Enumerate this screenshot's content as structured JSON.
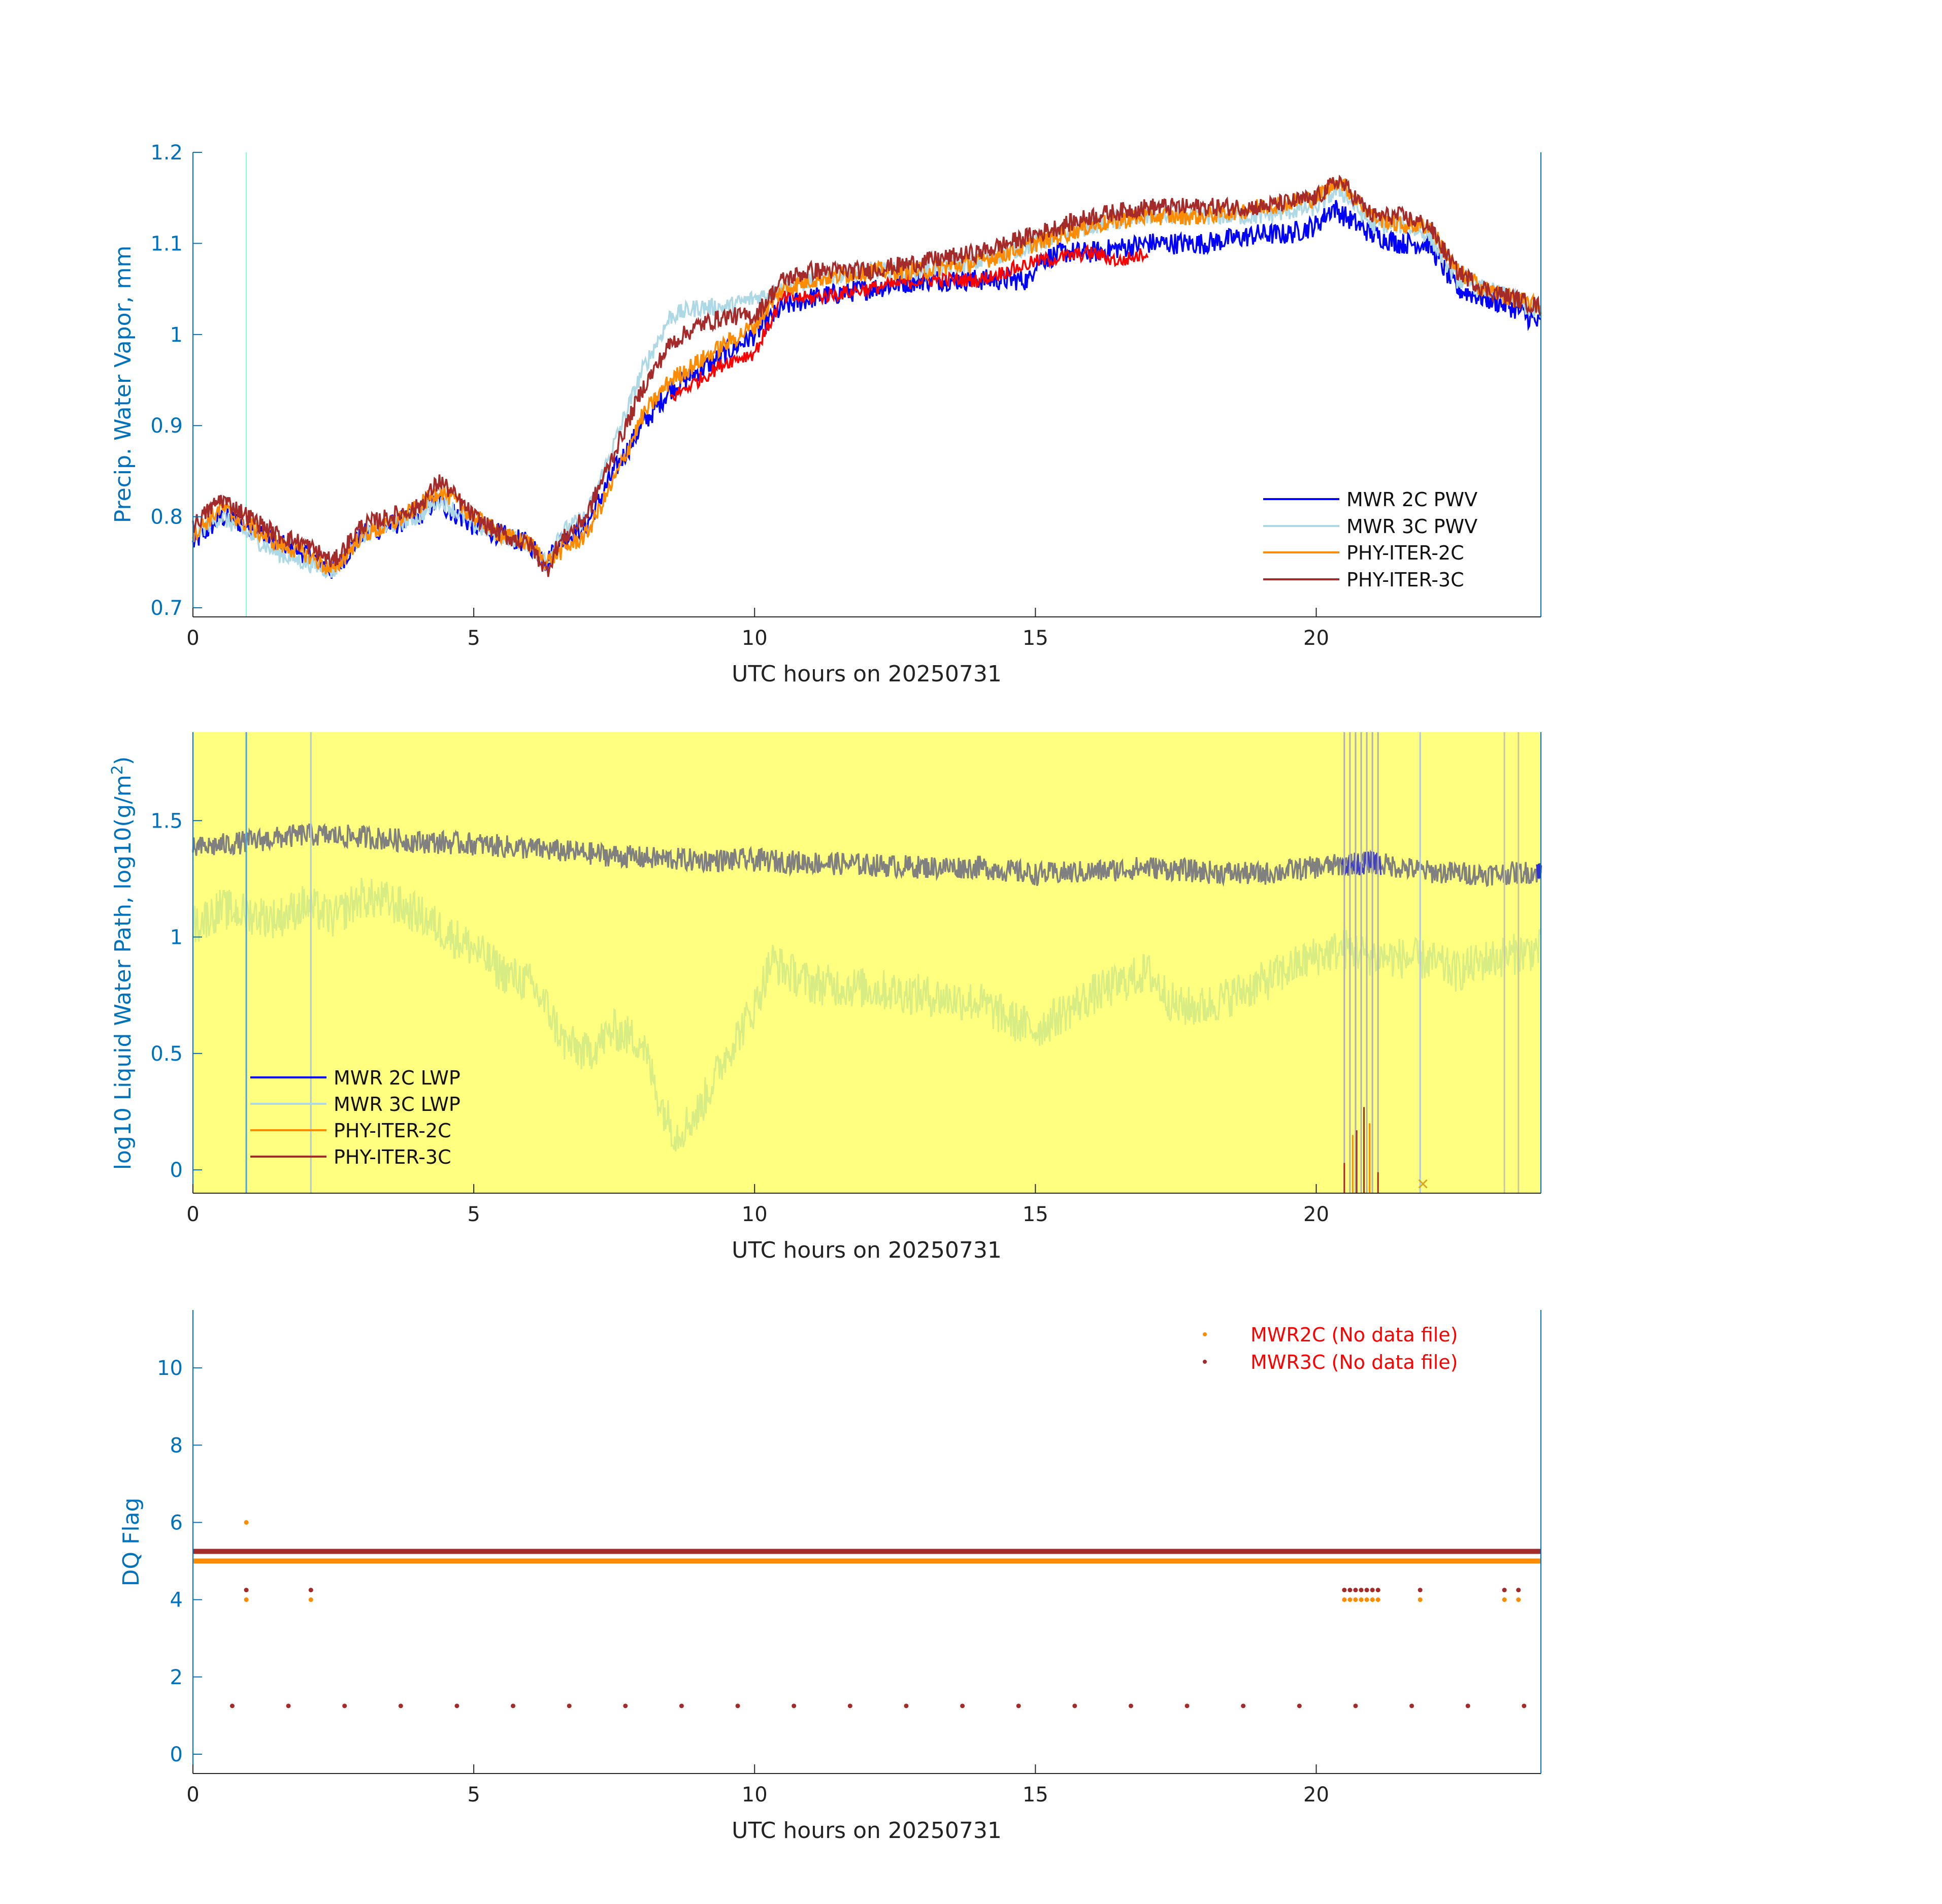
{
  "page": {
    "date": "20250731"
  },
  "colors": {
    "axis_blue": "#0072BD",
    "mwr2c": "#0000FF",
    "mwr3c": "#ADD8E6",
    "phy2c": "#FF8C00",
    "phy3c": "#A52A2A",
    "red_seg": "#FF0000",
    "lwp_bg": "#FFFF80",
    "lwp_gray": "#808080",
    "lwp_green": "#D8EC84",
    "dq_orange": "#FF8C00",
    "dq_red": "#A52A2A",
    "legend_red_text": "#FF0000"
  },
  "chart_data": [
    {
      "type": "line",
      "name": "pwv",
      "title": "",
      "xlabel": "UTC hours on 20250731",
      "ylabel": "Precip. Water Vapor, mm",
      "xlim": [
        0,
        24
      ],
      "ylim": [
        0.69,
        1.2
      ],
      "xticks": [
        0,
        5,
        10,
        15,
        20
      ],
      "yticks": [
        0.7,
        0.8,
        0.9,
        1,
        1.1,
        1.2
      ],
      "ytick_labels": [
        "0.7",
        "0.8",
        "0.9",
        "1",
        "1.1",
        "1.2"
      ],
      "vlines": [
        {
          "x": 0.95,
          "color": "#7FFFD4"
        }
      ],
      "legend": [
        "MWR 2C PWV",
        "MWR 3C PWV",
        "PHY-ITER-2C",
        "PHY-ITER-3C"
      ],
      "legend_position": "bottom-right",
      "series": [
        {
          "name": "MWR 2C PWV",
          "color": "#0000FF",
          "noise": 0.012,
          "x": [
            0,
            0.5,
            1,
            1.5,
            2,
            2.5,
            3,
            3.5,
            4,
            4.4,
            4.5,
            5,
            5.5,
            6,
            6.3,
            6.5,
            7,
            7.5,
            8,
            8.5,
            9,
            9.5,
            10,
            10.5,
            11,
            12,
            13,
            14,
            14.9,
            15,
            15.5,
            16,
            17,
            17.5,
            18,
            19,
            19.5,
            20,
            20.3,
            20.5,
            21,
            21.5,
            22,
            22.5,
            23,
            23.5,
            24
          ],
          "y": [
            0.77,
            0.8,
            0.79,
            0.77,
            0.76,
            0.74,
            0.78,
            0.79,
            0.8,
            0.82,
            0.81,
            0.79,
            0.78,
            0.77,
            0.75,
            0.77,
            0.79,
            0.85,
            0.9,
            0.94,
            0.96,
            0.98,
            1.0,
            1.03,
            1.04,
            1.05,
            1.06,
            1.06,
            1.06,
            1.08,
            1.09,
            1.09,
            1.1,
            1.1,
            1.1,
            1.11,
            1.11,
            1.12,
            1.14,
            1.13,
            1.11,
            1.1,
            1.1,
            1.05,
            1.04,
            1.03,
            1.01
          ]
        },
        {
          "name": "MWR 3C PWV",
          "color": "#ADD8E6",
          "noise": 0.01,
          "x": [
            0,
            0.5,
            1,
            1.5,
            2,
            2.5,
            3,
            3.5,
            4,
            4.4,
            5,
            5.5,
            6,
            6.3,
            6.5,
            7,
            7.5,
            8,
            8.5,
            9,
            9.5,
            10,
            10.5,
            11,
            12,
            13,
            14,
            15,
            15.5,
            16,
            17,
            17.5,
            18,
            19,
            20,
            20.4,
            21,
            21.5,
            22,
            22.5,
            23,
            23.5,
            24
          ],
          "y": [
            0.78,
            0.8,
            0.78,
            0.76,
            0.75,
            0.74,
            0.78,
            0.79,
            0.8,
            0.82,
            0.79,
            0.78,
            0.77,
            0.75,
            0.78,
            0.8,
            0.88,
            0.96,
            1.02,
            1.03,
            1.03,
            1.04,
            1.05,
            1.06,
            1.07,
            1.07,
            1.08,
            1.1,
            1.11,
            1.12,
            1.13,
            1.13,
            1.13,
            1.13,
            1.14,
            1.16,
            1.12,
            1.12,
            1.11,
            1.06,
            1.05,
            1.04,
            1.02
          ]
        },
        {
          "name": "PHY-ITER-2C",
          "color": "#FF8C00",
          "noise": 0.01,
          "x": [
            0,
            0.5,
            1,
            1.5,
            2,
            2.5,
            3,
            3.5,
            4,
            4.4,
            5,
            5.5,
            6,
            6.3,
            6.5,
            7,
            7.5,
            8,
            8.5,
            9,
            9.5,
            10,
            10.5,
            11,
            12,
            13,
            14,
            15,
            15.5,
            16,
            17,
            17.5,
            18,
            19,
            20,
            20.4,
            21,
            21.5,
            22,
            22.5,
            23,
            23.5,
            24
          ],
          "y": [
            0.78,
            0.81,
            0.79,
            0.77,
            0.76,
            0.74,
            0.78,
            0.79,
            0.81,
            0.83,
            0.8,
            0.78,
            0.77,
            0.75,
            0.76,
            0.78,
            0.84,
            0.91,
            0.95,
            0.97,
            0.99,
            1.01,
            1.05,
            1.06,
            1.07,
            1.07,
            1.08,
            1.1,
            1.11,
            1.12,
            1.13,
            1.13,
            1.13,
            1.14,
            1.15,
            1.17,
            1.13,
            1.12,
            1.12,
            1.07,
            1.05,
            1.04,
            1.03
          ]
        },
        {
          "name": "PHY-ITER-3C",
          "color": "#A52A2A",
          "noise": 0.01,
          "x": [
            0,
            0.5,
            1,
            1.5,
            2,
            2.5,
            3,
            3.5,
            4,
            4.4,
            5,
            5.5,
            6,
            6.3,
            6.5,
            7,
            7.5,
            8,
            8.5,
            9,
            9.5,
            10,
            10.5,
            11,
            12,
            13,
            14,
            15,
            15.5,
            16,
            17,
            17.5,
            18,
            19,
            20,
            20.4,
            21,
            21.5,
            22,
            22.5,
            23,
            23.5,
            24
          ],
          "y": [
            0.79,
            0.82,
            0.8,
            0.78,
            0.77,
            0.75,
            0.79,
            0.8,
            0.81,
            0.84,
            0.8,
            0.78,
            0.77,
            0.74,
            0.77,
            0.8,
            0.87,
            0.94,
            0.99,
            1.01,
            1.02,
            1.02,
            1.06,
            1.07,
            1.07,
            1.08,
            1.09,
            1.11,
            1.12,
            1.13,
            1.14,
            1.14,
            1.14,
            1.14,
            1.15,
            1.17,
            1.13,
            1.13,
            1.12,
            1.07,
            1.05,
            1.04,
            1.03
          ]
        }
      ],
      "highlight_segments": [
        {
          "name": "red",
          "color": "#FF0000",
          "x": [
            8.5,
            9,
            9.5,
            10,
            10.5,
            11,
            12,
            13,
            14,
            15,
            16,
            16.5,
            17
          ],
          "y": [
            0.93,
            0.95,
            0.97,
            0.98,
            1.04,
            1.04,
            1.05,
            1.06,
            1.06,
            1.08,
            1.09,
            1.08,
            1.09
          ]
        }
      ]
    },
    {
      "type": "line",
      "name": "lwp",
      "title": "",
      "xlabel": "UTC hours on 20250731",
      "ylabel": "log10 Liquid Water Path, log10(g/m",
      "ylabel_sup": "2",
      "ylabel_end": ")",
      "xlim": [
        0,
        24
      ],
      "ylim": [
        -0.1,
        1.88
      ],
      "xticks": [
        0,
        5,
        10,
        15,
        20
      ],
      "yticks": [
        0,
        0.5,
        1,
        1.5
      ],
      "ytick_labels": [
        "0",
        "0.5",
        "1",
        "1.5"
      ],
      "background": "#FFFF80",
      "vlines": [
        {
          "x": 0.95,
          "color": "#4FA3D9"
        },
        {
          "x": 2.1,
          "color": "#B0C8E0"
        },
        {
          "x": 20.5,
          "color": "#B0B0B0"
        },
        {
          "x": 20.6,
          "color": "#B0B0B0"
        },
        {
          "x": 20.7,
          "color": "#B0B0B0"
        },
        {
          "x": 20.8,
          "color": "#B0B0B0"
        },
        {
          "x": 20.9,
          "color": "#B0B0B0"
        },
        {
          "x": 21.0,
          "color": "#B0B0B0"
        },
        {
          "x": 21.1,
          "color": "#B0B0B0"
        },
        {
          "x": 21.85,
          "color": "#B0C8E0"
        },
        {
          "x": 23.35,
          "color": "#C8C8A0"
        },
        {
          "x": 23.6,
          "color": "#C8C8A0"
        }
      ],
      "legend": [
        "MWR 2C LWP",
        "MWR 3C LWP",
        "PHY-ITER-2C",
        "PHY-ITER-3C"
      ],
      "legend_position": "bottom-left",
      "series": [
        {
          "name": "MWR 3C LWP (light)",
          "color": "#D8EC84",
          "noise": 0.09,
          "x": [
            0,
            0.5,
            1,
            1.5,
            2,
            2.5,
            3,
            3.5,
            4,
            4.5,
            5,
            5.5,
            6,
            6.3,
            6.6,
            7,
            7.5,
            8,
            8.3,
            8.6,
            9,
            9.5,
            10,
            10.3,
            10.6,
            11,
            12,
            13,
            14,
            14.5,
            15,
            16,
            17,
            17.5,
            18,
            19,
            20,
            20.5,
            21,
            22,
            22.5,
            23,
            24
          ],
          "y": [
            1.05,
            1.12,
            1.1,
            1.08,
            1.14,
            1.08,
            1.17,
            1.15,
            1.1,
            1.02,
            0.95,
            0.85,
            0.8,
            0.7,
            0.55,
            0.5,
            0.6,
            0.55,
            0.3,
            0.15,
            0.25,
            0.5,
            0.7,
            0.9,
            0.85,
            0.8,
            0.78,
            0.75,
            0.72,
            0.65,
            0.6,
            0.75,
            0.85,
            0.7,
            0.7,
            0.8,
            0.92,
            0.95,
            0.92,
            0.9,
            0.85,
            0.9,
            0.95
          ]
        },
        {
          "name": "MWR 2C LWP (gray)",
          "color": "#808080",
          "noise": 0.05,
          "x": [
            0,
            1,
            2,
            3,
            4,
            5,
            6,
            7,
            8,
            9,
            10,
            11,
            12,
            13,
            14,
            15,
            16,
            17,
            18,
            19,
            20,
            21,
            22,
            23,
            24
          ],
          "y": [
            1.38,
            1.41,
            1.44,
            1.43,
            1.41,
            1.4,
            1.38,
            1.36,
            1.34,
            1.33,
            1.33,
            1.32,
            1.31,
            1.3,
            1.3,
            1.27,
            1.28,
            1.3,
            1.28,
            1.27,
            1.3,
            1.32,
            1.28,
            1.27,
            1.28
          ]
        }
      ],
      "markers": [
        {
          "x": 21.9,
          "y": -0.06,
          "symbol": "x",
          "color": "#DAA520"
        }
      ]
    },
    {
      "type": "scatter",
      "name": "dq",
      "title": "",
      "xlabel": "UTC hours on 20250731",
      "ylabel": "DQ Flag",
      "xlim": [
        0,
        24
      ],
      "ylim": [
        -0.5,
        11.5
      ],
      "xticks": [
        0,
        5,
        10,
        15,
        20
      ],
      "yticks": [
        0,
        2,
        4,
        6,
        8,
        10
      ],
      "ytick_labels": [
        "0",
        "2",
        "4",
        "6",
        "8",
        "10"
      ],
      "legend": [
        "MWR2C (No data file)",
        "MWR3C (No data file)"
      ],
      "legend_position": "top-right",
      "bands": [
        {
          "name": "MWR2C flag 5",
          "y": 5.0,
          "color": "#FF8C00"
        },
        {
          "name": "MWR3C flag 5.25",
          "y": 5.25,
          "color": "#A52A2A"
        }
      ],
      "points_orange": [
        [
          0.95,
          6
        ],
        [
          0.95,
          4
        ],
        [
          2.1,
          4
        ],
        [
          20.5,
          4
        ],
        [
          20.6,
          4
        ],
        [
          20.7,
          4
        ],
        [
          20.8,
          4
        ],
        [
          20.9,
          4
        ],
        [
          21.0,
          4
        ],
        [
          21.1,
          4
        ],
        [
          21.85,
          4
        ],
        [
          23.35,
          4
        ],
        [
          23.6,
          4
        ]
      ],
      "points_red": [
        [
          0.95,
          4.25
        ],
        [
          2.1,
          4.25
        ],
        [
          20.5,
          4.25
        ],
        [
          20.6,
          4.25
        ],
        [
          20.7,
          4.25
        ],
        [
          20.8,
          4.25
        ],
        [
          20.9,
          4.25
        ],
        [
          21.0,
          4.25
        ],
        [
          21.1,
          4.25
        ],
        [
          21.85,
          4.25
        ],
        [
          23.35,
          4.25
        ],
        [
          23.6,
          4.25
        ],
        [
          0.7,
          1.25
        ],
        [
          1.7,
          1.25
        ],
        [
          2.7,
          1.25
        ],
        [
          3.7,
          1.25
        ],
        [
          4.7,
          1.25
        ],
        [
          5.7,
          1.25
        ],
        [
          6.7,
          1.25
        ],
        [
          7.7,
          1.25
        ],
        [
          8.7,
          1.25
        ],
        [
          9.7,
          1.25
        ],
        [
          10.7,
          1.25
        ],
        [
          11.7,
          1.25
        ],
        [
          12.7,
          1.25
        ],
        [
          13.7,
          1.25
        ],
        [
          14.7,
          1.25
        ],
        [
          15.7,
          1.25
        ],
        [
          16.7,
          1.25
        ],
        [
          17.7,
          1.25
        ],
        [
          18.7,
          1.25
        ],
        [
          19.7,
          1.25
        ],
        [
          20.7,
          1.25
        ],
        [
          21.7,
          1.25
        ],
        [
          22.7,
          1.25
        ],
        [
          23.7,
          1.25
        ]
      ]
    }
  ]
}
